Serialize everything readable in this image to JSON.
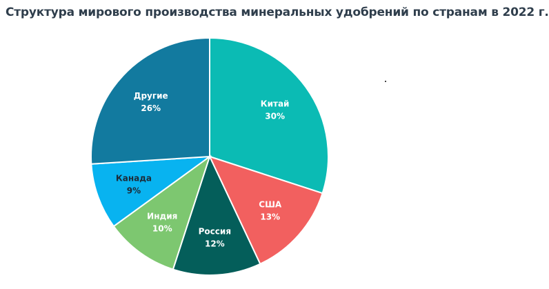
{
  "chart_data": {
    "type": "pie",
    "title": "Структура мирового производства минеральных удобрений по странам в 2022 г.",
    "slices": [
      {
        "name": "Китай",
        "value": 30,
        "label": "30%",
        "color": "#0bbbb4",
        "label_color": "#ffffff"
      },
      {
        "name": "США",
        "value": 13,
        "label": "13%",
        "color": "#f2605f",
        "label_color": "#ffffff"
      },
      {
        "name": "Россия",
        "value": 12,
        "label": "12%",
        "color": "#045e5a",
        "label_color": "#ffffff"
      },
      {
        "name": "Индия",
        "value": 10,
        "label": "10%",
        "color": "#7dc770",
        "label_color": "#ffffff"
      },
      {
        "name": "Канада",
        "value": 9,
        "label": "9%",
        "color": "#08b3f0",
        "label_color": "#1d2b38"
      },
      {
        "name": "Другие",
        "value": 26,
        "label": "26%",
        "color": "#127a9f",
        "label_color": "#ffffff"
      }
    ]
  }
}
